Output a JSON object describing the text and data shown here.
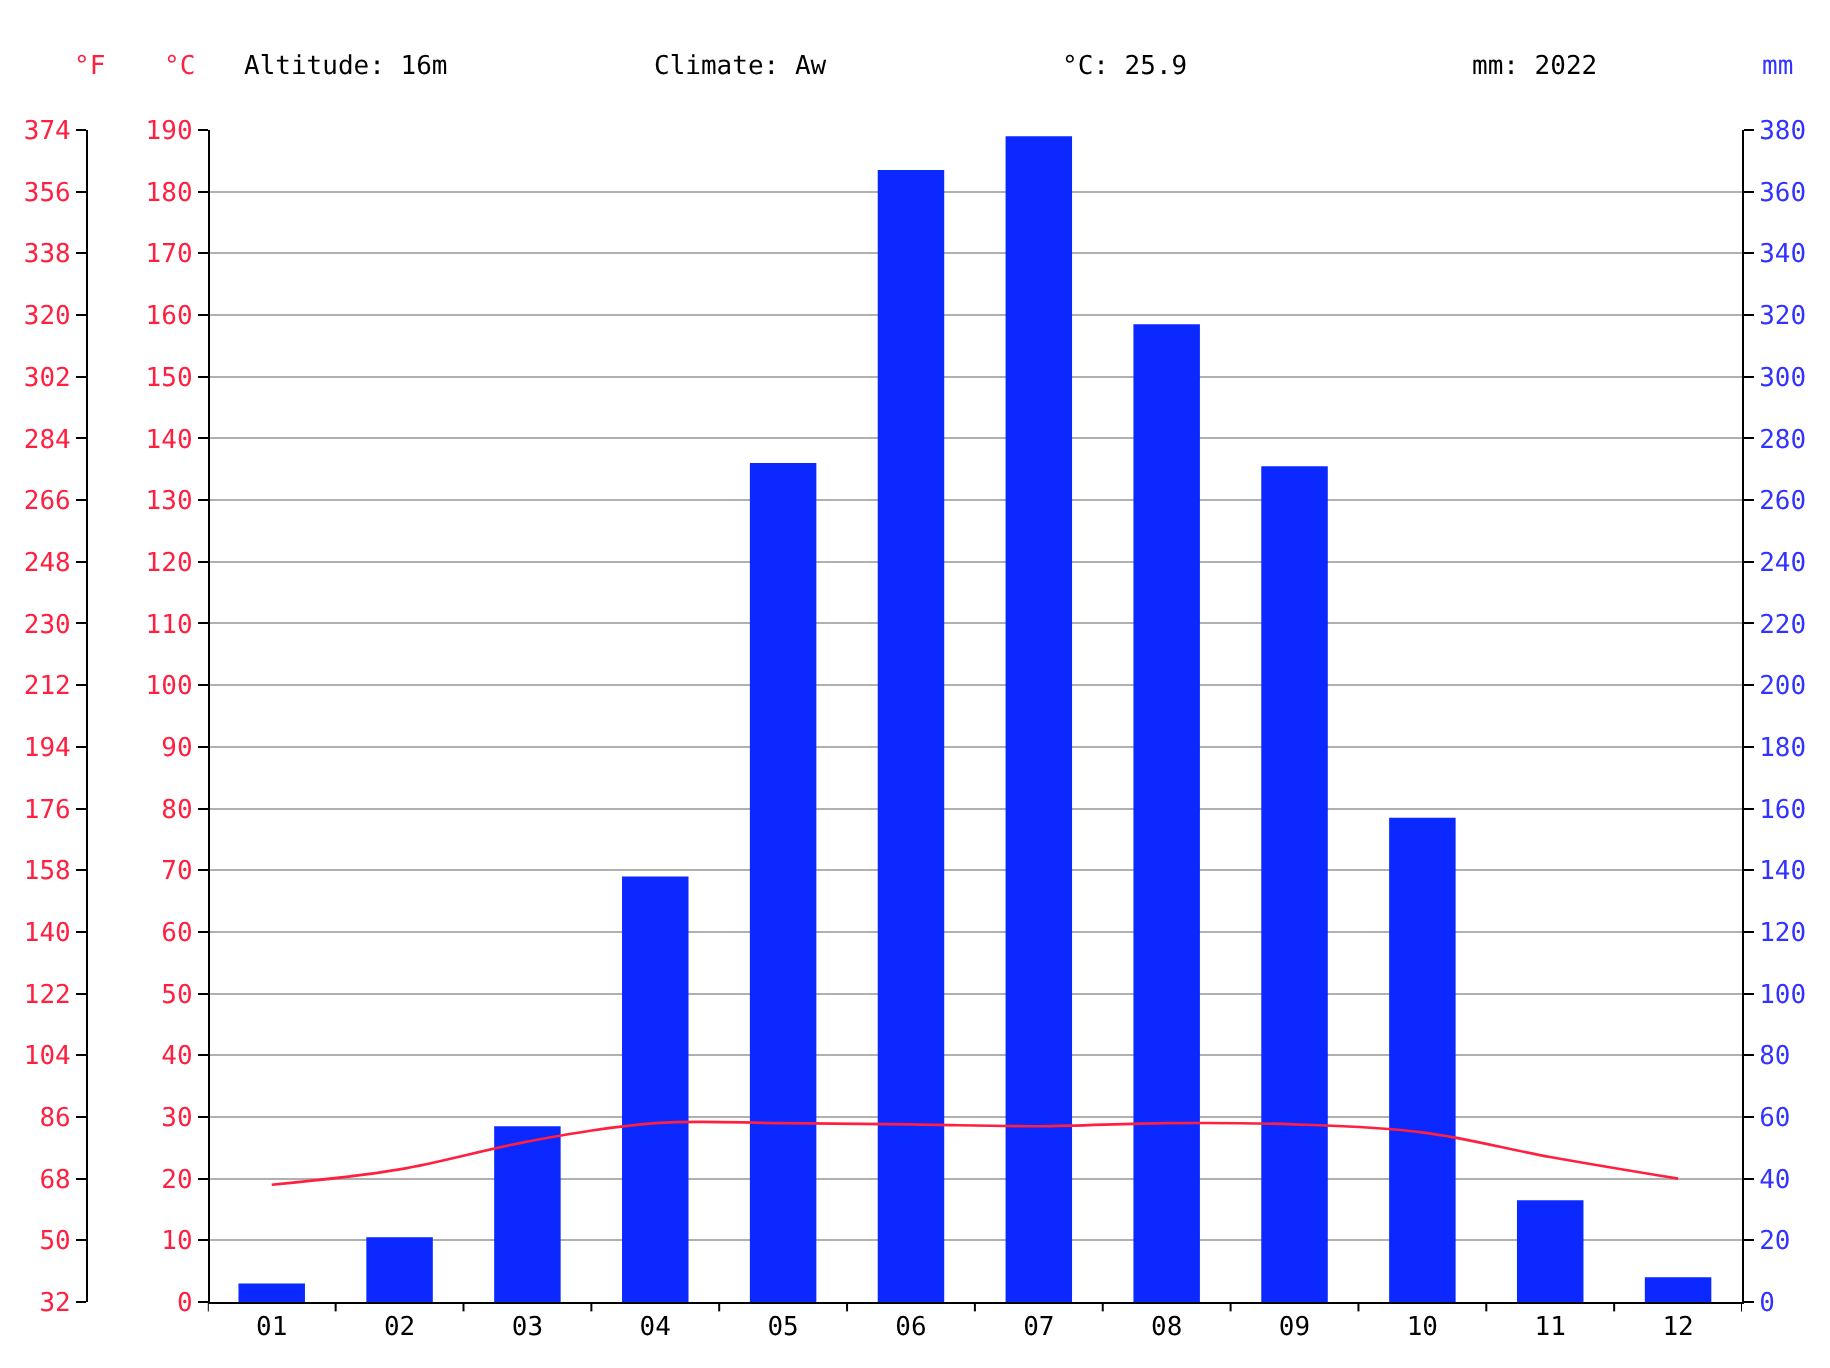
{
  "chart_data": {
    "type": "bar",
    "categories": [
      "01",
      "02",
      "03",
      "04",
      "05",
      "06",
      "07",
      "08",
      "09",
      "10",
      "11",
      "12"
    ],
    "series": [
      {
        "axis": "y2",
        "color": "#0a28ff",
        "values": [
          6,
          21,
          57,
          138,
          272,
          367,
          378,
          317,
          271,
          157,
          33,
          8
        ]
      },
      {
        "type": "line",
        "axis": "y",
        "color": "#ff2040",
        "values": [
          19,
          21.5,
          26,
          29,
          29,
          28.8,
          28.5,
          29,
          28.8,
          27.5,
          23.5,
          20
        ]
      }
    ],
    "ylabel": "°C",
    "y2label": "mm",
    "y3label": "°F",
    "ylim": [
      0,
      190
    ],
    "yticks": [
      0,
      10,
      20,
      30,
      40,
      50,
      60,
      70,
      80,
      90,
      100,
      110,
      120,
      130,
      140,
      150,
      160,
      170,
      180,
      190
    ],
    "y2lim": [
      0,
      380
    ],
    "y2ticks": [
      0,
      20,
      40,
      60,
      80,
      100,
      120,
      140,
      160,
      180,
      200,
      220,
      240,
      260,
      280,
      300,
      320,
      340,
      360,
      380
    ],
    "y3lim": [
      32,
      374
    ],
    "y3ticks": [
      32,
      50,
      68,
      86,
      104,
      122,
      140,
      158,
      176,
      194,
      212,
      230,
      248,
      266,
      284,
      302,
      320,
      338,
      356,
      374
    ],
    "annotations": [
      "Altitude: 16m",
      "Climate: Aw",
      "°C: 25.9",
      "mm: 2022"
    ],
    "grid": "y",
    "marker": "none",
    "line_style": "solid"
  }
}
